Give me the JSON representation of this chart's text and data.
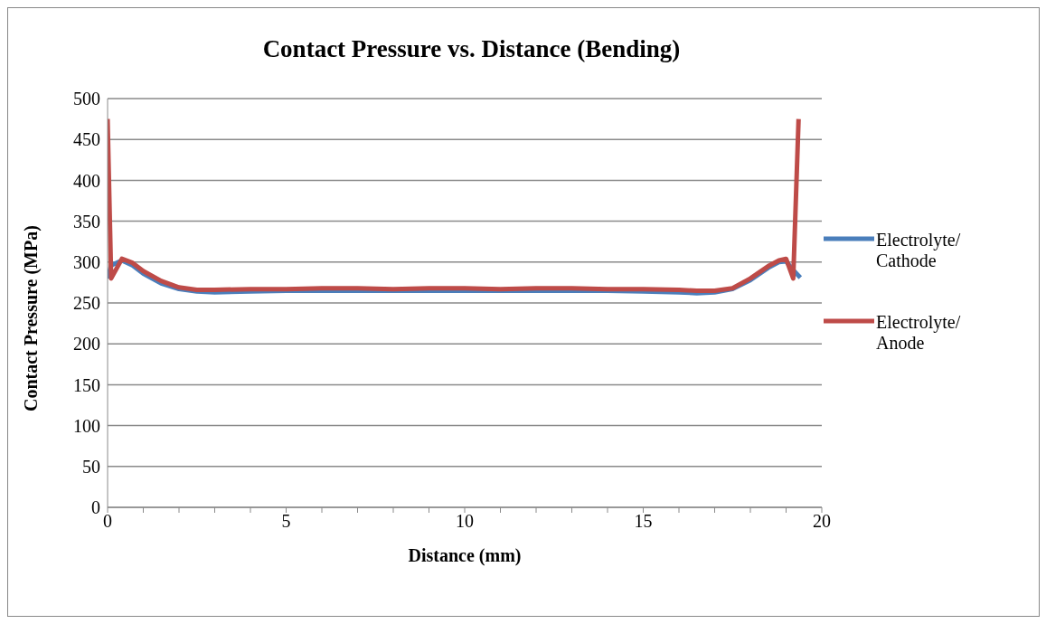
{
  "chart_data": {
    "type": "line",
    "title": "Contact Pressure vs. Distance (Bending)",
    "xlabel": "Distance (mm)",
    "ylabel": "Contact Pressure (MPa)",
    "series": [
      {
        "name": "Electrolyte/ Cathode",
        "color": "#4a7ebb",
        "x": [
          0,
          0.1,
          0.4,
          0.7,
          1,
          1.5,
          2,
          2.5,
          3,
          4,
          5,
          6,
          7,
          8,
          9,
          10,
          11,
          12,
          13,
          14,
          15,
          16,
          16.5,
          17,
          17.5,
          18,
          18.5,
          18.8,
          19,
          19.2,
          19.4
        ],
        "values": [
          280,
          296,
          302,
          296,
          286,
          274,
          267,
          264,
          263,
          264,
          265,
          265,
          265,
          265,
          265,
          265,
          265,
          265,
          265,
          265,
          264,
          263,
          262,
          263,
          267,
          278,
          293,
          300,
          301,
          290,
          281
        ]
      },
      {
        "name": "Electrolyte/ Anode",
        "color": "#be4b48",
        "x": [
          0,
          0.1,
          0.4,
          0.7,
          1,
          1.5,
          2,
          2.5,
          3,
          4,
          5,
          6,
          7,
          8,
          9,
          10,
          11,
          12,
          13,
          14,
          15,
          16,
          16.5,
          17,
          17.5,
          18,
          18.5,
          18.8,
          19,
          19.2,
          19.35
        ],
        "values": [
          475,
          280,
          304,
          299,
          289,
          277,
          269,
          266,
          266,
          267,
          267,
          268,
          268,
          267,
          268,
          268,
          267,
          268,
          268,
          267,
          267,
          266,
          265,
          265,
          268,
          280,
          295,
          302,
          304,
          280,
          475
        ]
      }
    ],
    "xlim": [
      0,
      20
    ],
    "xticks": [
      0,
      {
        "value": 1,
        "label": null
      },
      {
        "value": 2,
        "label": null
      },
      {
        "value": 3,
        "label": null
      },
      {
        "value": 4,
        "label": null
      },
      5,
      {
        "value": 6,
        "label": null
      },
      {
        "value": 7,
        "label": null
      },
      {
        "value": 8,
        "label": null
      },
      {
        "value": 9,
        "label": null
      },
      10,
      {
        "value": 11,
        "label": null
      },
      {
        "value": 12,
        "label": null
      },
      {
        "value": 13,
        "label": null
      },
      {
        "value": 14,
        "label": null
      },
      15,
      {
        "value": 16,
        "label": null
      },
      {
        "value": 17,
        "label": null
      },
      {
        "value": 18,
        "label": null
      },
      {
        "value": 19,
        "label": null
      },
      20
    ],
    "ylim": [
      0,
      500
    ],
    "yticks": [
      0,
      50,
      100,
      150,
      200,
      250,
      300,
      350,
      400,
      450,
      500
    ],
    "grid": "y",
    "legend": "right",
    "marker": "none",
    "line_style": "solid"
  }
}
